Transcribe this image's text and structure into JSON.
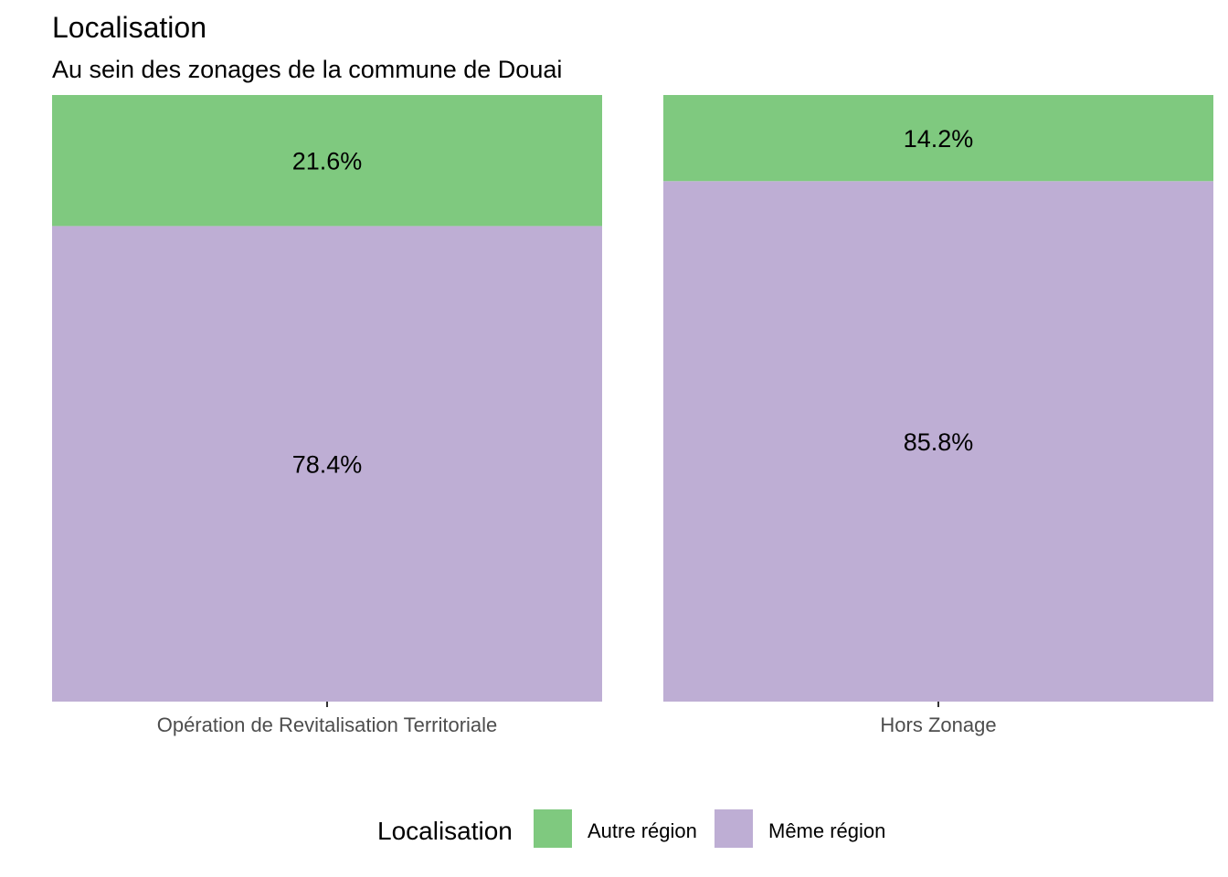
{
  "chart_data": {
    "type": "bar",
    "stacked": true,
    "normalized": true,
    "title": "Localisation",
    "subtitle": "Au sein des zonages de la commune de Douai",
    "categories": [
      "Opération de Revitalisation Territoriale",
      "Hors Zonage"
    ],
    "series": [
      {
        "name": "Autre région",
        "color": "#7fc97f",
        "values": [
          21.6,
          14.2
        ],
        "labels": [
          "21.6%",
          "14.2%"
        ]
      },
      {
        "name": "Même région",
        "color": "#beaed4",
        "values": [
          78.4,
          85.8
        ],
        "labels": [
          "78.4%",
          "85.8%"
        ]
      }
    ],
    "ylim": [
      0,
      100
    ],
    "grid": false,
    "legend": {
      "title": "Localisation",
      "position": "bottom"
    }
  }
}
